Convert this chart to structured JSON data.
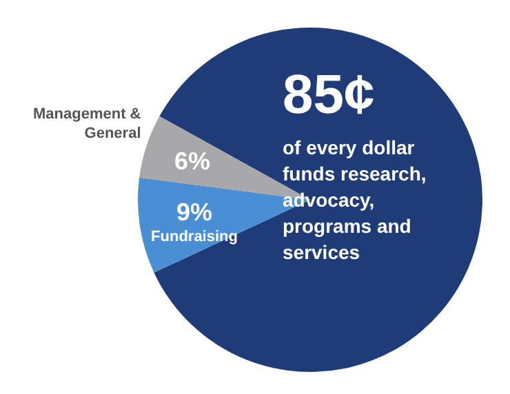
{
  "chart_data": {
    "type": "pie",
    "categories": [
      "of every dollar funds research, advocacy, programs and services",
      "Fundraising",
      "Management & General"
    ],
    "values": [
      85,
      9,
      6
    ],
    "value_labels": [
      "85¢",
      "9%",
      "6%"
    ],
    "colors": [
      "#1f3c78",
      "#4a8fd4",
      "#a8a8aa"
    ],
    "legend": false
  }
}
